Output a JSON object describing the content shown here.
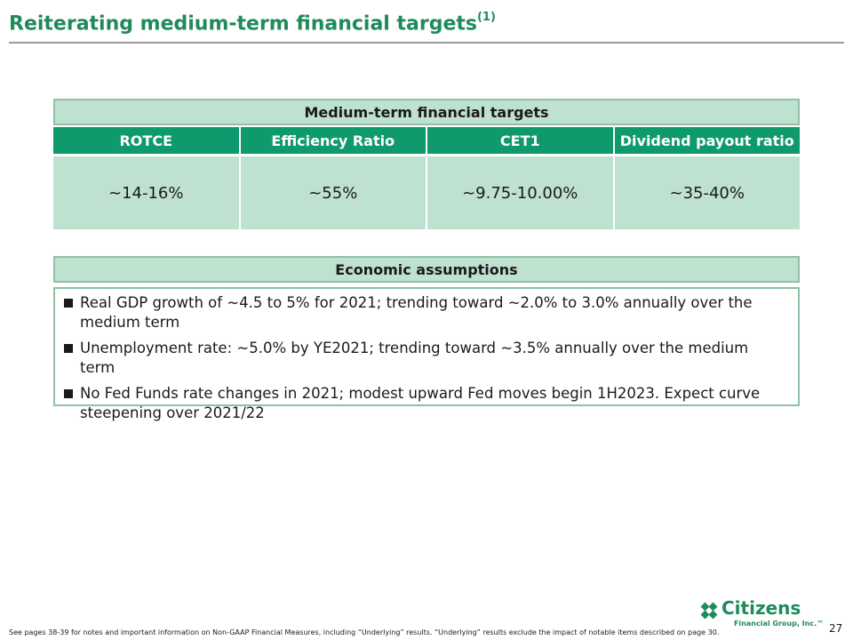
{
  "title": {
    "main": "Reiterating medium-term financial targets",
    "superscript": "(1)"
  },
  "targets": {
    "heading": "Medium-term financial targets",
    "columns": [
      "ROTCE",
      "Efficiency Ratio",
      "CET1",
      "Dividend payout ratio"
    ],
    "values": [
      "~14-16%",
      "~55%",
      "~9.75-10.00%",
      "~35-40%"
    ]
  },
  "assumptions": {
    "heading": "Economic assumptions",
    "items": [
      "Real GDP growth of ~4.5 to 5% for 2021; trending toward ~2.0% to 3.0% annually over the medium term",
      "Unemployment rate: ~5.0% by YE2021; trending toward ~3.5% annually over the medium term",
      "No Fed Funds rate changes in 2021; modest upward Fed moves begin 1H2023. Expect curve steepening over 2021/22"
    ]
  },
  "footer": {
    "note": "See pages 38-39 for notes and important information on Non-GAAP Financial Measures, including “Underlying” results. “Underlying” results exclude the impact of notable items described on page 30.",
    "page_number": "27",
    "logo_name": "Citizens",
    "logo_sub": "Financial Group, Inc.™"
  },
  "colors": {
    "brand_green": "#1f8a5a",
    "header_green": "#0f9a6e",
    "light_green": "#bfe1cf"
  }
}
